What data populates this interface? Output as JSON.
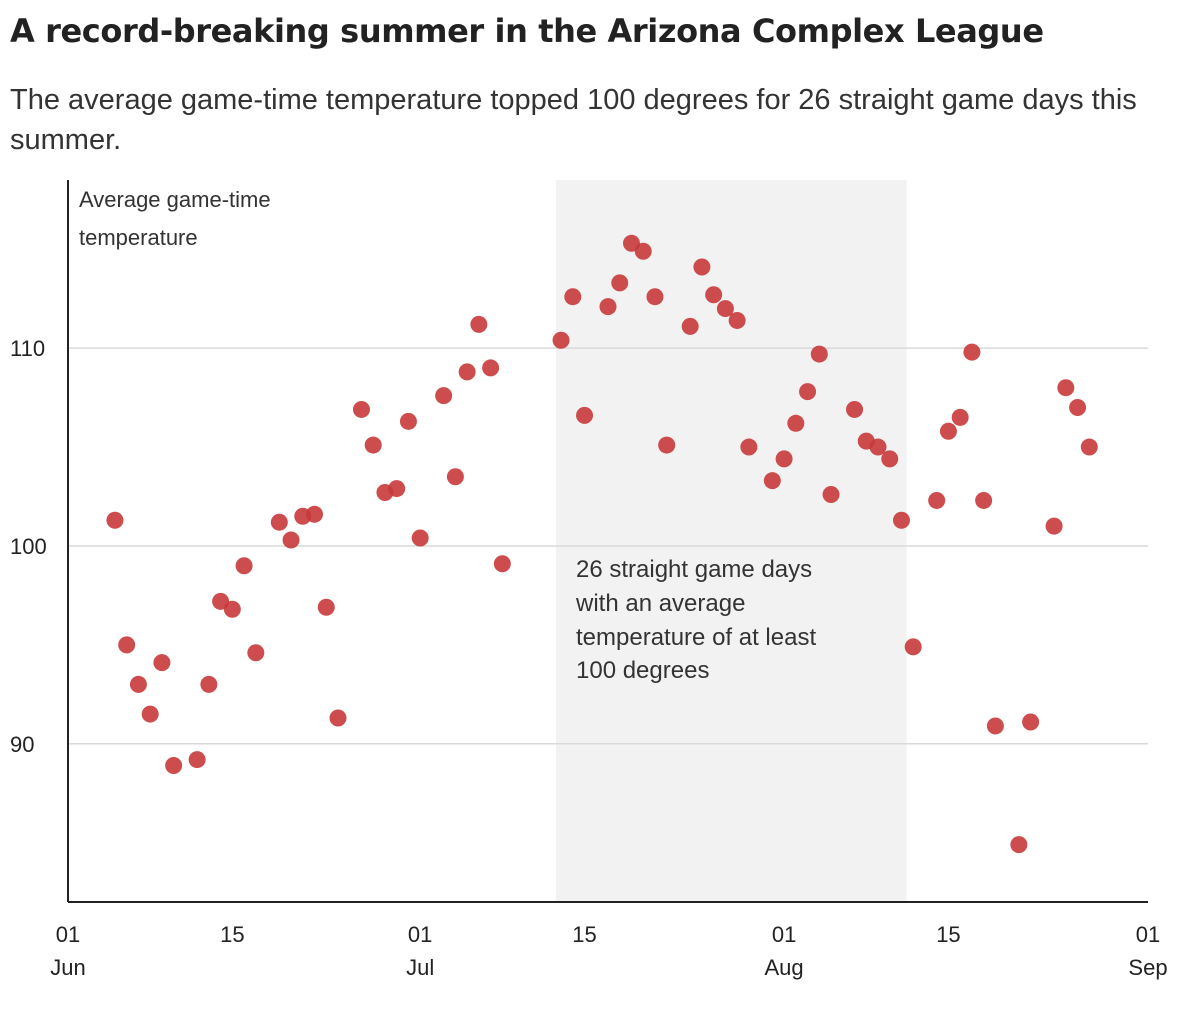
{
  "title": "A record-breaking summer in the Arizona Complex League",
  "subtitle": "The average game-time temperature topped 100 degrees for 26 straight game days this summer.",
  "colors": {
    "dot": "#c8383a",
    "highlight": "#f2f2f2",
    "grid": "#d9d9d9",
    "axis": "#222222"
  },
  "chart_data": {
    "type": "scatter",
    "ylabel": [
      "Average game-time",
      "temperature"
    ],
    "ylim": [
      82,
      118.5
    ],
    "xlim": [
      "2023-06-01",
      "2023-09-01"
    ],
    "y_ticks": [
      90,
      100,
      110
    ],
    "y_gridlines": true,
    "x_ticks": [
      {
        "date": "2023-06-01",
        "label": "01",
        "sublabel": "Jun"
      },
      {
        "date": "2023-06-15",
        "label": "15",
        "sublabel": ""
      },
      {
        "date": "2023-07-01",
        "label": "01",
        "sublabel": "Jul"
      },
      {
        "date": "2023-07-15",
        "label": "15",
        "sublabel": ""
      },
      {
        "date": "2023-08-01",
        "label": "01",
        "sublabel": "Aug"
      },
      {
        "date": "2023-08-15",
        "label": "15",
        "sublabel": ""
      },
      {
        "date": "2023-09-01",
        "label": "01",
        "sublabel": "Sep"
      }
    ],
    "highlight_range": {
      "start": "2023-07-13",
      "end": "2023-08-11"
    },
    "annotation": [
      "26 straight game days",
      "with an average",
      "temperature of at least",
      "100 degrees"
    ],
    "points": [
      {
        "date": "2023-06-05",
        "temp": 101.3
      },
      {
        "date": "2023-06-06",
        "temp": 95.0
      },
      {
        "date": "2023-06-07",
        "temp": 93.0
      },
      {
        "date": "2023-06-08",
        "temp": 91.5
      },
      {
        "date": "2023-06-09",
        "temp": 94.1
      },
      {
        "date": "2023-06-10",
        "temp": 88.9
      },
      {
        "date": "2023-06-12",
        "temp": 89.2
      },
      {
        "date": "2023-06-13",
        "temp": 93.0
      },
      {
        "date": "2023-06-14",
        "temp": 97.2
      },
      {
        "date": "2023-06-15",
        "temp": 96.8
      },
      {
        "date": "2023-06-16",
        "temp": 99.0
      },
      {
        "date": "2023-06-17",
        "temp": 94.6
      },
      {
        "date": "2023-06-19",
        "temp": 101.2
      },
      {
        "date": "2023-06-20",
        "temp": 100.3
      },
      {
        "date": "2023-06-21",
        "temp": 101.5
      },
      {
        "date": "2023-06-22",
        "temp": 101.6
      },
      {
        "date": "2023-06-23",
        "temp": 96.9
      },
      {
        "date": "2023-06-24",
        "temp": 91.3
      },
      {
        "date": "2023-06-26",
        "temp": 106.9
      },
      {
        "date": "2023-06-27",
        "temp": 105.1
      },
      {
        "date": "2023-06-28",
        "temp": 102.7
      },
      {
        "date": "2023-06-29",
        "temp": 102.9
      },
      {
        "date": "2023-06-30",
        "temp": 106.3
      },
      {
        "date": "2023-07-01",
        "temp": 100.4
      },
      {
        "date": "2023-07-03",
        "temp": 107.6
      },
      {
        "date": "2023-07-04",
        "temp": 103.5
      },
      {
        "date": "2023-07-05",
        "temp": 108.8
      },
      {
        "date": "2023-07-06",
        "temp": 111.2
      },
      {
        "date": "2023-07-07",
        "temp": 109.0
      },
      {
        "date": "2023-07-08",
        "temp": 99.1
      },
      {
        "date": "2023-07-13",
        "temp": 110.4
      },
      {
        "date": "2023-07-14",
        "temp": 112.6
      },
      {
        "date": "2023-07-15",
        "temp": 106.6
      },
      {
        "date": "2023-07-17",
        "temp": 112.1
      },
      {
        "date": "2023-07-18",
        "temp": 113.3
      },
      {
        "date": "2023-07-19",
        "temp": 115.3
      },
      {
        "date": "2023-07-20",
        "temp": 114.9
      },
      {
        "date": "2023-07-21",
        "temp": 112.6
      },
      {
        "date": "2023-07-22",
        "temp": 105.1
      },
      {
        "date": "2023-07-24",
        "temp": 111.1
      },
      {
        "date": "2023-07-25",
        "temp": 114.1
      },
      {
        "date": "2023-07-26",
        "temp": 112.7
      },
      {
        "date": "2023-07-27",
        "temp": 112.0
      },
      {
        "date": "2023-07-28",
        "temp": 111.4
      },
      {
        "date": "2023-07-29",
        "temp": 105.0
      },
      {
        "date": "2023-07-31",
        "temp": 103.3
      },
      {
        "date": "2023-08-01",
        "temp": 104.4
      },
      {
        "date": "2023-08-02",
        "temp": 106.2
      },
      {
        "date": "2023-08-03",
        "temp": 107.8
      },
      {
        "date": "2023-08-04",
        "temp": 109.7
      },
      {
        "date": "2023-08-05",
        "temp": 102.6
      },
      {
        "date": "2023-08-07",
        "temp": 106.9
      },
      {
        "date": "2023-08-08",
        "temp": 105.3
      },
      {
        "date": "2023-08-09",
        "temp": 105.0
      },
      {
        "date": "2023-08-10",
        "temp": 104.4
      },
      {
        "date": "2023-08-11",
        "temp": 101.3
      },
      {
        "date": "2023-08-12",
        "temp": 94.9
      },
      {
        "date": "2023-08-14",
        "temp": 102.3
      },
      {
        "date": "2023-08-15",
        "temp": 105.8
      },
      {
        "date": "2023-08-16",
        "temp": 106.5
      },
      {
        "date": "2023-08-17",
        "temp": 109.8
      },
      {
        "date": "2023-08-18",
        "temp": 102.3
      },
      {
        "date": "2023-08-19",
        "temp": 90.9
      },
      {
        "date": "2023-08-21",
        "temp": 84.9
      },
      {
        "date": "2023-08-22",
        "temp": 91.1
      },
      {
        "date": "2023-08-24",
        "temp": 101.0
      },
      {
        "date": "2023-08-25",
        "temp": 108.0
      },
      {
        "date": "2023-08-26",
        "temp": 107.0
      },
      {
        "date": "2023-08-27",
        "temp": 105.0
      }
    ]
  }
}
